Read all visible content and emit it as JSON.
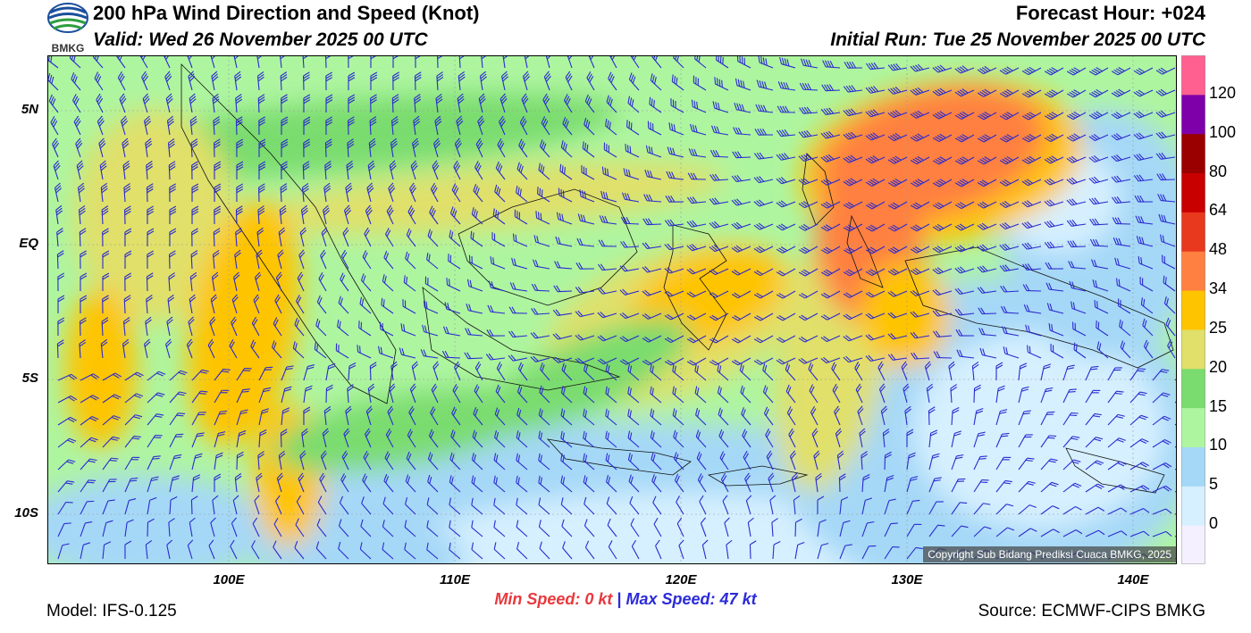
{
  "header": {
    "title": "200 hPa Wind Direction and Speed (Knot)",
    "valid": "Valid: Wed 26 November 2025 00 UTC",
    "forecast_hour": "Forecast Hour: +024",
    "initial_run": "Initial Run: Tue 25 November 2025 00 UTC"
  },
  "logo": {
    "text": "BMKG",
    "colors": {
      "blue": "#1b4f9c",
      "green": "#2e9e3f"
    }
  },
  "map": {
    "lat_labels": [
      "5N",
      "EQ",
      "5S",
      "10S"
    ],
    "lon_labels": [
      "100E",
      "110E",
      "120E",
      "130E",
      "140E"
    ],
    "barb_color": "#2a2ad0",
    "copyright": "Copyright Sub Bidang Prediksi Cuaca BMKG, 2025"
  },
  "colorbar": {
    "labels": [
      "120",
      "100",
      "80",
      "64",
      "48",
      "34",
      "25",
      "20",
      "15",
      "10",
      "5",
      "0"
    ],
    "colors": [
      "#f4f0ff",
      "#d6f0ff",
      "#a5d8f7",
      "#aef5a0",
      "#7adc6e",
      "#e0e06a",
      "#ffc400",
      "#ff8040",
      "#e8381e",
      "#c90000",
      "#9a0000",
      "#7e00a8",
      "#ff6090"
    ]
  },
  "footer": {
    "min_speed": "Min Speed:   0 kt",
    "separator": "|",
    "max_speed": "Max Speed:  47 kt",
    "model": "Model: IFS-0.125",
    "source": "Source: ECMWF-CIPS BMKG"
  }
}
